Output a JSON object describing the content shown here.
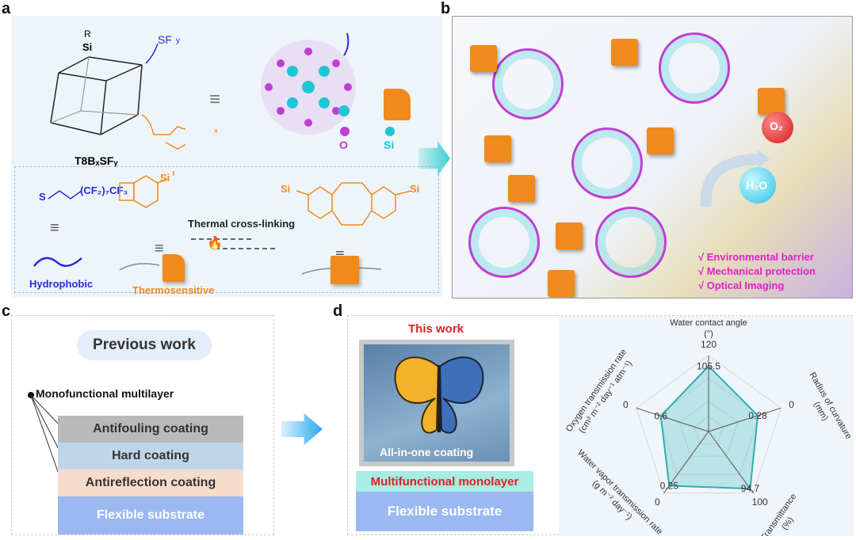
{
  "panels": {
    "a": "a",
    "b": "b",
    "c": "c",
    "d": "d"
  },
  "panel_a": {
    "cage_label": "T8BₓSFᵧ",
    "atoms": {
      "si": "Si",
      "o": "O",
      "r": "R"
    },
    "sf_group": "SF",
    "sf_sub": "y",
    "bcb_sub": "x",
    "equiv": "≡",
    "legend_o": "O",
    "legend_si": "Si",
    "chain_formula": "(CF₂)₇CF₃",
    "sulfur": "S",
    "reaction": "Thermal cross-linking",
    "hydrophobic": "Hydrophobic",
    "thermosensitive": "Thermosensitive",
    "colors": {
      "hydrophobic": "#2a2adf",
      "thermo": "#f08a1c",
      "o": "#c03ed1",
      "si": "#1fc6d6"
    }
  },
  "panel_b": {
    "o2": "O₂",
    "h2o": "H₂O",
    "benefits": [
      "√ Environmental barrier",
      "√ Mechanical protection",
      "√ Optical Imaging"
    ],
    "benefit_color": "#e020c8"
  },
  "panel_c": {
    "title": "Previous work",
    "subtitle": "Monofunctional multilayer",
    "layers": [
      {
        "label": "Antifouling coating",
        "color": "#b9b9b9"
      },
      {
        "label": "Hard coating",
        "color": "#bfd6ea"
      },
      {
        "label": "Antireflection coating",
        "color": "#f6dccb"
      },
      {
        "label": "Flexible substrate",
        "color": "#9cb8f0"
      }
    ]
  },
  "panel_d": {
    "title": "This work",
    "photo_caption": "All-in-one coating",
    "layers": [
      {
        "label": "Multifunctional monolayer",
        "color": "#a8ece4"
      },
      {
        "label": "Flexible substrate",
        "color": "#9cb8f0"
      }
    ]
  },
  "chart_data": {
    "type": "radar",
    "fill_color": "#5cc4c4",
    "axes": [
      {
        "label": "Water contact angle",
        "unit": "(°)",
        "tick_outer": "120",
        "value": "105.5",
        "level": 0.86
      },
      {
        "label": "Radius of curvature",
        "unit": "(mm)",
        "tick_outer": "0",
        "value": "0.28",
        "level": 0.68
      },
      {
        "label": "Transmittance",
        "unit": "(%)",
        "tick_outer": "100",
        "value": "94.7",
        "level": 0.93
      },
      {
        "label": "Water vapor transmission rate",
        "unit": "(g m⁻² day⁻¹)",
        "tick_outer": "0",
        "value": "0.25",
        "level": 0.88
      },
      {
        "label": "Oxygen transmission rate",
        "unit": "(cm³ m⁻² day⁻¹ atm⁻¹)",
        "tick_outer": "0",
        "value": "0.6",
        "level": 0.66
      }
    ]
  }
}
